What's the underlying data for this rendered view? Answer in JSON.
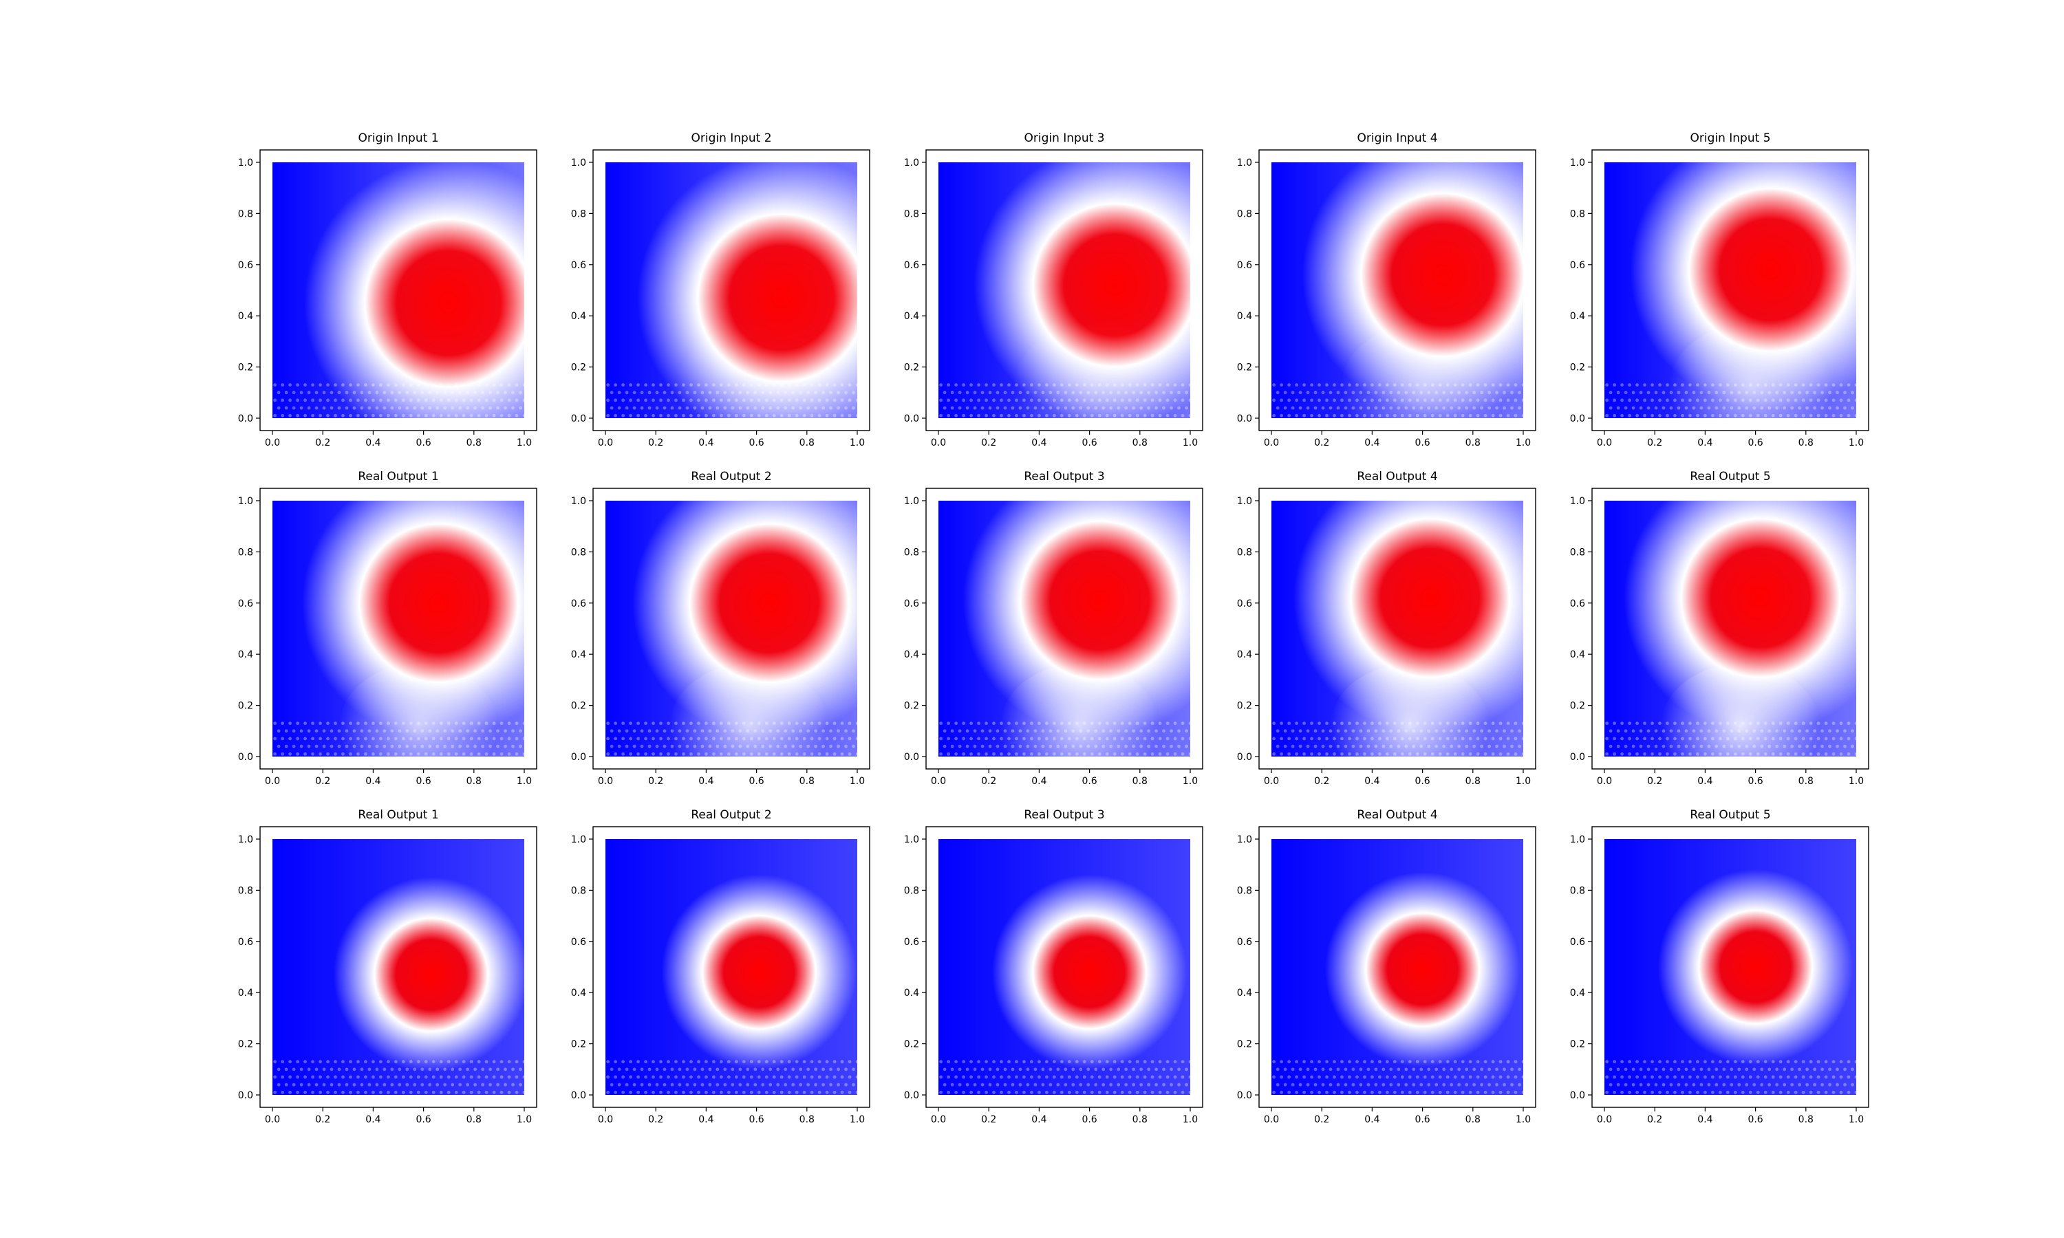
{
  "figure": {
    "background": "#ffffff",
    "colormap": [
      "#0000ff",
      "#ffffff",
      "#ff0000"
    ]
  },
  "chart_data": [
    {
      "type": "scatter",
      "title": "Origin Input 1",
      "xlim": [
        0,
        1
      ],
      "ylim": [
        0,
        1
      ],
      "x_ticks": [
        "0.0",
        "0.2",
        "0.4",
        "0.6",
        "0.8",
        "1.0"
      ],
      "y_ticks": [
        "0.0",
        "0.2",
        "0.4",
        "0.6",
        "0.8",
        "1.0"
      ],
      "grid": false,
      "blob_center": [
        0.7,
        0.45
      ],
      "blob_radius": 0.37,
      "tail": 0.0
    },
    {
      "type": "scatter",
      "title": "Origin Input 2",
      "xlim": [
        0,
        1
      ],
      "ylim": [
        0,
        1
      ],
      "x_ticks": [
        "0.0",
        "0.2",
        "0.4",
        "0.6",
        "0.8",
        "1.0"
      ],
      "y_ticks": [
        "0.0",
        "0.2",
        "0.4",
        "0.6",
        "0.8",
        "1.0"
      ],
      "grid": false,
      "blob_center": [
        0.7,
        0.47
      ],
      "blob_radius": 0.37,
      "tail": 0.2
    },
    {
      "type": "scatter",
      "title": "Origin Input 3",
      "xlim": [
        0,
        1
      ],
      "ylim": [
        0,
        1
      ],
      "x_ticks": [
        "0.0",
        "0.2",
        "0.4",
        "0.6",
        "0.8",
        "1.0"
      ],
      "y_ticks": [
        "0.0",
        "0.2",
        "0.4",
        "0.6",
        "0.8",
        "1.0"
      ],
      "grid": false,
      "blob_center": [
        0.7,
        0.52
      ],
      "blob_radius": 0.36,
      "tail": 0.4
    },
    {
      "type": "scatter",
      "title": "Origin Input 4",
      "xlim": [
        0,
        1
      ],
      "ylim": [
        0,
        1
      ],
      "x_ticks": [
        "0.0",
        "0.2",
        "0.4",
        "0.6",
        "0.8",
        "1.0"
      ],
      "y_ticks": [
        "0.0",
        "0.2",
        "0.4",
        "0.6",
        "0.8",
        "1.0"
      ],
      "grid": false,
      "blob_center": [
        0.68,
        0.56
      ],
      "blob_radius": 0.36,
      "tail": 0.55
    },
    {
      "type": "scatter",
      "title": "Origin Input 5",
      "xlim": [
        0,
        1
      ],
      "ylim": [
        0,
        1
      ],
      "x_ticks": [
        "0.0",
        "0.2",
        "0.4",
        "0.6",
        "0.8",
        "1.0"
      ],
      "y_ticks": [
        "0.0",
        "0.2",
        "0.4",
        "0.6",
        "0.8",
        "1.0"
      ],
      "grid": false,
      "blob_center": [
        0.66,
        0.58
      ],
      "blob_radius": 0.36,
      "tail": 0.7
    },
    {
      "type": "scatter",
      "title": "Real Output 1",
      "xlim": [
        0,
        1
      ],
      "ylim": [
        0,
        1
      ],
      "x_ticks": [
        "0.0",
        "0.2",
        "0.4",
        "0.6",
        "0.8",
        "1.0"
      ],
      "y_ticks": [
        "0.0",
        "0.2",
        "0.4",
        "0.6",
        "0.8",
        "1.0"
      ],
      "grid": false,
      "blob_center": [
        0.66,
        0.6
      ],
      "blob_radius": 0.35,
      "tail": 0.75
    },
    {
      "type": "scatter",
      "title": "Real Output 2",
      "xlim": [
        0,
        1
      ],
      "ylim": [
        0,
        1
      ],
      "x_ticks": [
        "0.0",
        "0.2",
        "0.4",
        "0.6",
        "0.8",
        "1.0"
      ],
      "y_ticks": [
        "0.0",
        "0.2",
        "0.4",
        "0.6",
        "0.8",
        "1.0"
      ],
      "grid": false,
      "blob_center": [
        0.65,
        0.6
      ],
      "blob_radius": 0.35,
      "tail": 0.8
    },
    {
      "type": "scatter",
      "title": "Real Output 3",
      "xlim": [
        0,
        1
      ],
      "ylim": [
        0,
        1
      ],
      "x_ticks": [
        "0.0",
        "0.2",
        "0.4",
        "0.6",
        "0.8",
        "1.0"
      ],
      "y_ticks": [
        "0.0",
        "0.2",
        "0.4",
        "0.6",
        "0.8",
        "1.0"
      ],
      "grid": false,
      "blob_center": [
        0.64,
        0.61
      ],
      "blob_radius": 0.35,
      "tail": 0.85
    },
    {
      "type": "scatter",
      "title": "Real Output 4",
      "xlim": [
        0,
        1
      ],
      "ylim": [
        0,
        1
      ],
      "x_ticks": [
        "0.0",
        "0.2",
        "0.4",
        "0.6",
        "0.8",
        "1.0"
      ],
      "y_ticks": [
        "0.0",
        "0.2",
        "0.4",
        "0.6",
        "0.8",
        "1.0"
      ],
      "grid": false,
      "blob_center": [
        0.63,
        0.62
      ],
      "blob_radius": 0.35,
      "tail": 0.9
    },
    {
      "type": "scatter",
      "title": "Real Output 5",
      "xlim": [
        0,
        1
      ],
      "ylim": [
        0,
        1
      ],
      "x_ticks": [
        "0.0",
        "0.2",
        "0.4",
        "0.6",
        "0.8",
        "1.0"
      ],
      "y_ticks": [
        "0.0",
        "0.2",
        "0.4",
        "0.6",
        "0.8",
        "1.0"
      ],
      "grid": false,
      "blob_center": [
        0.62,
        0.62
      ],
      "blob_radius": 0.35,
      "tail": 0.95
    },
    {
      "type": "scatter",
      "title": "Real Output 1",
      "xlim": [
        0,
        1
      ],
      "ylim": [
        0,
        1
      ],
      "x_ticks": [
        "0.0",
        "0.2",
        "0.4",
        "0.6",
        "0.8",
        "1.0"
      ],
      "y_ticks": [
        "0.0",
        "0.2",
        "0.4",
        "0.6",
        "0.8",
        "1.0"
      ],
      "grid": false,
      "blob_center": [
        0.63,
        0.47
      ],
      "blob_radius": 0.25,
      "tail": 0.0
    },
    {
      "type": "scatter",
      "title": "Real Output 2",
      "xlim": [
        0,
        1
      ],
      "ylim": [
        0,
        1
      ],
      "x_ticks": [
        "0.0",
        "0.2",
        "0.4",
        "0.6",
        "0.8",
        "1.0"
      ],
      "y_ticks": [
        "0.0",
        "0.2",
        "0.4",
        "0.6",
        "0.8",
        "1.0"
      ],
      "grid": false,
      "blob_center": [
        0.61,
        0.48
      ],
      "blob_radius": 0.25,
      "tail": 0.0
    },
    {
      "type": "scatter",
      "title": "Real Output 3",
      "xlim": [
        0,
        1
      ],
      "ylim": [
        0,
        1
      ],
      "x_ticks": [
        "0.0",
        "0.2",
        "0.4",
        "0.6",
        "0.8",
        "1.0"
      ],
      "y_ticks": [
        "0.0",
        "0.2",
        "0.4",
        "0.6",
        "0.8",
        "1.0"
      ],
      "grid": false,
      "blob_center": [
        0.6,
        0.48
      ],
      "blob_radius": 0.25,
      "tail": 0.0
    },
    {
      "type": "scatter",
      "title": "Real Output 4",
      "xlim": [
        0,
        1
      ],
      "ylim": [
        0,
        1
      ],
      "x_ticks": [
        "0.0",
        "0.2",
        "0.4",
        "0.6",
        "0.8",
        "1.0"
      ],
      "y_ticks": [
        "0.0",
        "0.2",
        "0.4",
        "0.6",
        "0.8",
        "1.0"
      ],
      "grid": false,
      "blob_center": [
        0.6,
        0.49
      ],
      "blob_radius": 0.25,
      "tail": 0.0
    },
    {
      "type": "scatter",
      "title": "Real Output 5",
      "xlim": [
        0,
        1
      ],
      "ylim": [
        0,
        1
      ],
      "x_ticks": [
        "0.0",
        "0.2",
        "0.4",
        "0.6",
        "0.8",
        "1.0"
      ],
      "y_ticks": [
        "0.0",
        "0.2",
        "0.4",
        "0.6",
        "0.8",
        "1.0"
      ],
      "grid": false,
      "blob_center": [
        0.6,
        0.5
      ],
      "blob_radius": 0.25,
      "tail": 0.0
    }
  ]
}
